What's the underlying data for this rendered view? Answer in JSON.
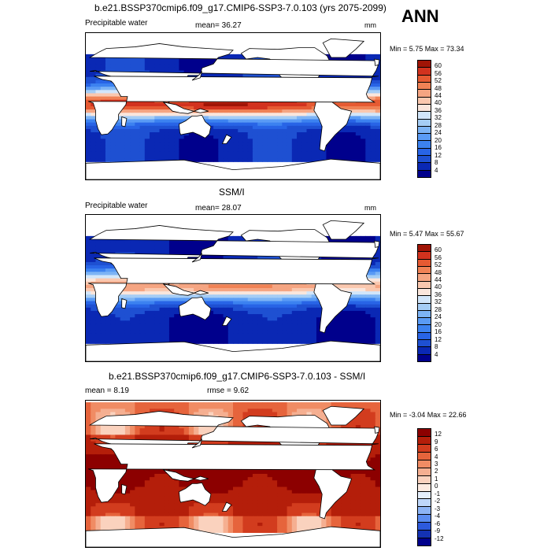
{
  "header": {
    "title": "b.e21.BSSP370cmip6.f09_g17.CMIP6-SSP3-7.0.103 (yrs 2075-2099)",
    "season": "ANN"
  },
  "panels": [
    {
      "title": "",
      "variable": "Precipitable water",
      "stat_text": "mean=  36.27",
      "units": "mm",
      "minmax": "Min =   5.75 Max =  73.34",
      "colorbar_labels": [
        "60",
        "56",
        "52",
        "48",
        "44",
        "40",
        "36",
        "32",
        "28",
        "24",
        "20",
        "16",
        "12",
        "8",
        "4"
      ]
    },
    {
      "title": "SSM/I",
      "variable": "Precipitable water",
      "stat_text": "mean=  28.07",
      "units": "mm",
      "minmax": "Min =   5.47 Max =  55.67",
      "colorbar_labels": [
        "60",
        "56",
        "52",
        "48",
        "44",
        "40",
        "36",
        "32",
        "28",
        "24",
        "20",
        "16",
        "12",
        "8",
        "4"
      ]
    },
    {
      "title": "b.e21.BSSP370cmip6.f09_g17.CMIP6-SSP3-7.0.103 - SSM/I",
      "mean_text": "mean =   8.19",
      "rmse_text": "rmse =   9.62",
      "minmax": "Min =  -3.04 Max =  22.66",
      "colorbar_labels": [
        "12",
        "9",
        "6",
        "4",
        "3",
        "2",
        "1",
        "0",
        "-1",
        "-2",
        "-3",
        "-4",
        "-6",
        "-9",
        "-12"
      ]
    }
  ],
  "colors": {
    "abs_scale": [
      "#00008c",
      "#0a28b4",
      "#1e50d2",
      "#2864e6",
      "#3c82f0",
      "#5a9bf5",
      "#7db4f5",
      "#a5cdf5",
      "#d2e6fa",
      "#fae6dc",
      "#fac8af",
      "#f5a582",
      "#f08255",
      "#e65a32",
      "#d2321e",
      "#a01406"
    ],
    "diff_scale": [
      "#00008c",
      "#1432b4",
      "#2d5adc",
      "#5a8cf0",
      "#8cb4f5",
      "#bed7fa",
      "#e6f0fc",
      "#fdebe1",
      "#fad2be",
      "#f5af91",
      "#f08c64",
      "#e6643c",
      "#d23c1e",
      "#b41e0a",
      "#8c0000"
    ],
    "land": "#ffffff"
  }
}
